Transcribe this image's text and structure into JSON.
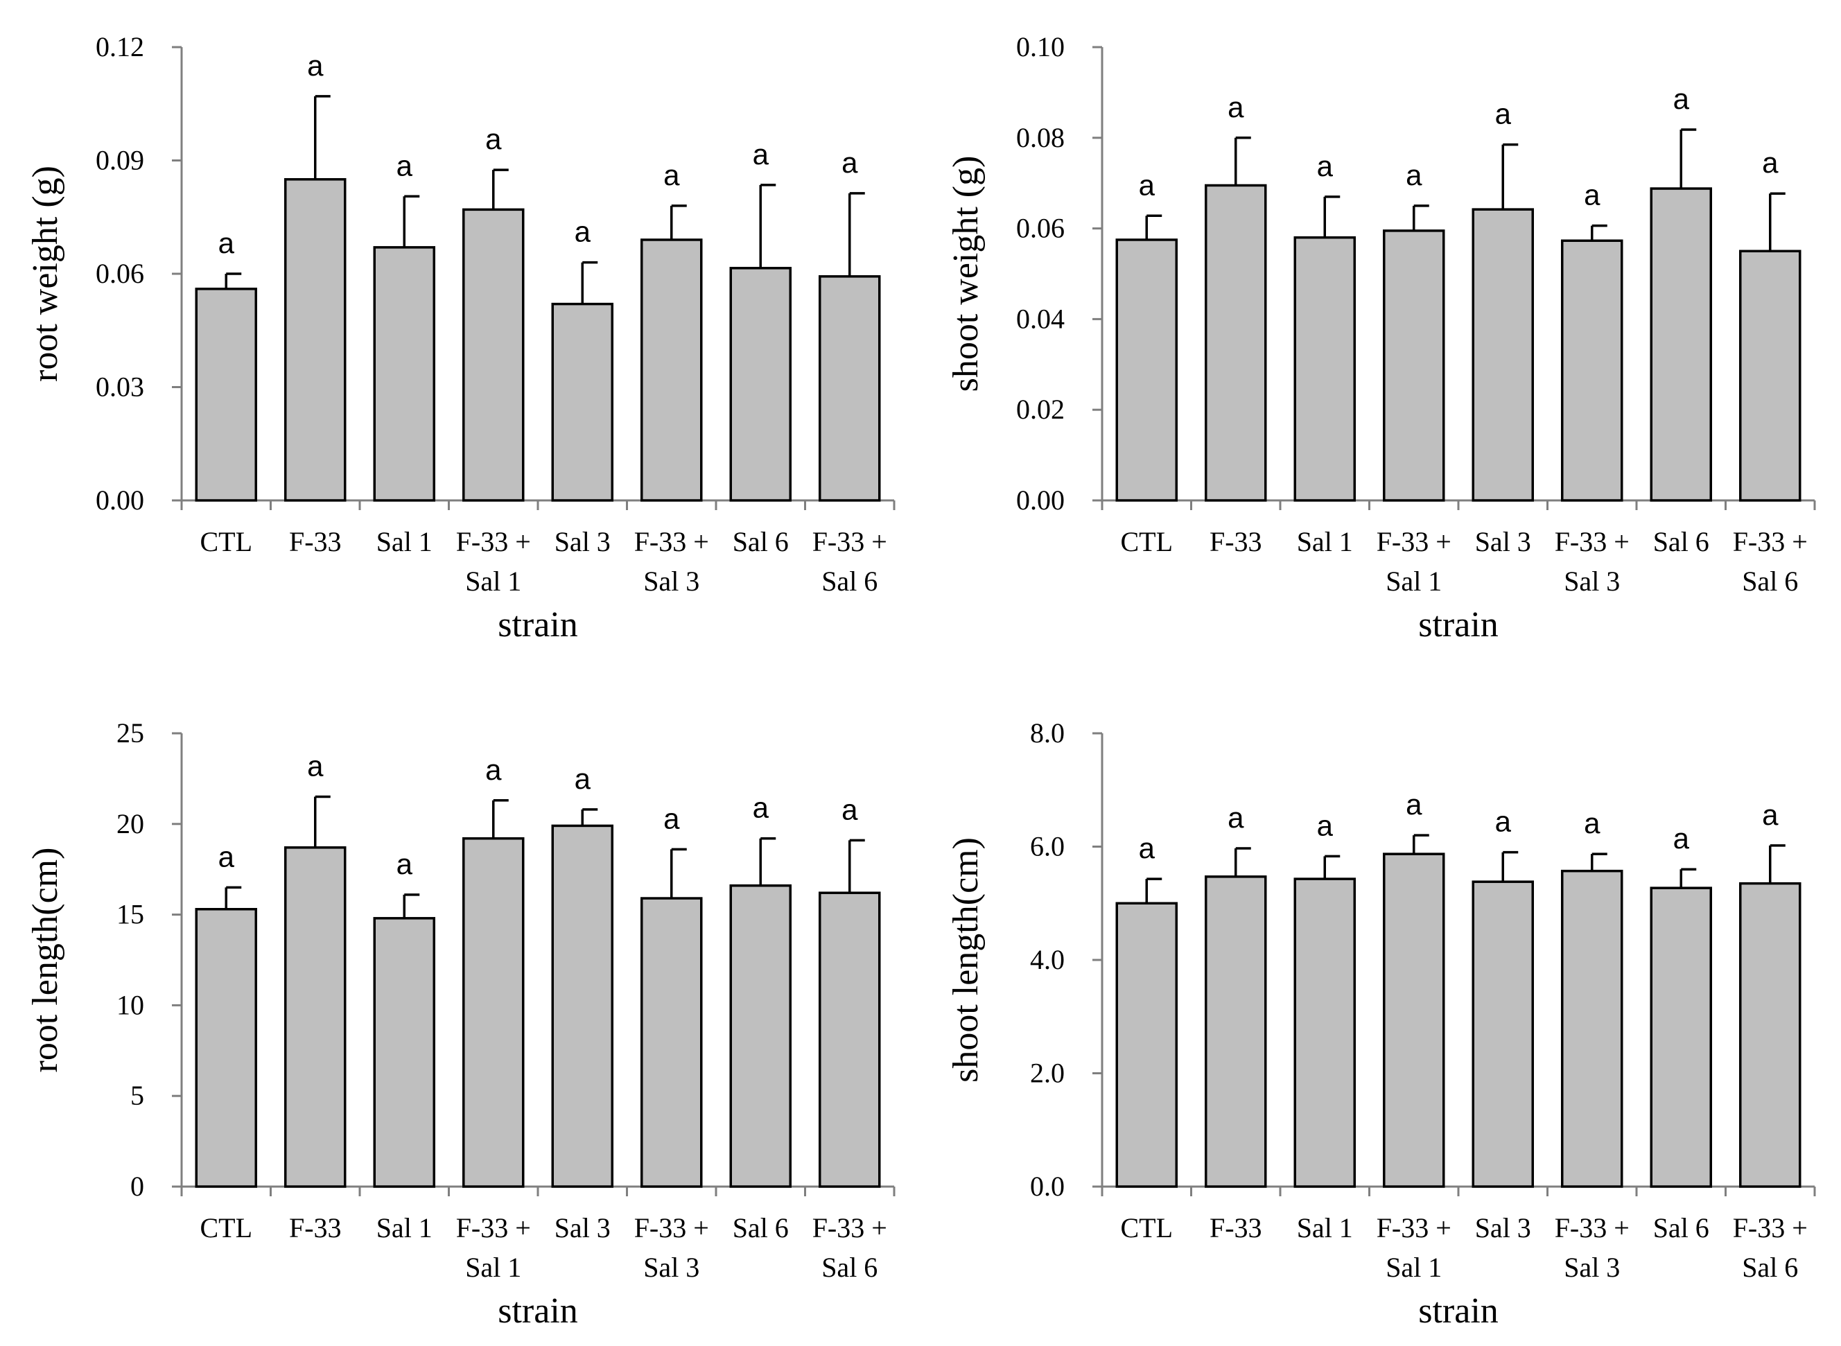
{
  "chart_data": [
    {
      "type": "bar",
      "categories": [
        [
          "CTL"
        ],
        [
          "F-33"
        ],
        [
          "Sal 1"
        ],
        [
          "F-33 +",
          "Sal 1"
        ],
        [
          "Sal 3"
        ],
        [
          "F-33 +",
          "Sal 3"
        ],
        [
          "Sal 6"
        ],
        [
          "F-33 +",
          "Sal 6"
        ]
      ],
      "values": [
        0.056,
        0.085,
        0.067,
        0.077,
        0.052,
        0.069,
        0.0615,
        0.0593
      ],
      "errors": [
        0.004,
        0.022,
        0.0135,
        0.0105,
        0.011,
        0.009,
        0.022,
        0.022
      ],
      "significance": [
        "a",
        "a",
        "a",
        "a",
        "a",
        "a",
        "a",
        "a"
      ],
      "xlabel": "strain",
      "ylabel": "root weight (g)",
      "ylim": [
        0,
        0.12
      ],
      "yticks": [
        "0.00",
        "0.03",
        "0.06",
        "0.09",
        "0.12"
      ],
      "grid": false,
      "bar_color": "#bfbfbf"
    },
    {
      "type": "bar",
      "categories": [
        [
          "CTL"
        ],
        [
          "F-33"
        ],
        [
          "Sal 1"
        ],
        [
          "F-33 +",
          "Sal 1"
        ],
        [
          "Sal 3"
        ],
        [
          "F-33 +",
          "Sal 3"
        ],
        [
          "Sal 6"
        ],
        [
          "F-33 +",
          "Sal 6"
        ]
      ],
      "values": [
        0.0575,
        0.0695,
        0.058,
        0.0595,
        0.0642,
        0.0573,
        0.0688,
        0.055
      ],
      "errors": [
        0.0053,
        0.0105,
        0.009,
        0.0055,
        0.0143,
        0.0033,
        0.013,
        0.0127
      ],
      "significance": [
        "a",
        "a",
        "a",
        "a",
        "a",
        "a",
        "a",
        "a"
      ],
      "xlabel": "strain",
      "ylabel": "shoot weight (g)",
      "ylim": [
        0,
        0.1
      ],
      "yticks": [
        "0.00",
        "0.02",
        "0.04",
        "0.06",
        "0.08",
        "0.10"
      ],
      "grid": false,
      "bar_color": "#bfbfbf"
    },
    {
      "type": "bar",
      "categories": [
        [
          "CTL"
        ],
        [
          "F-33"
        ],
        [
          "Sal 1"
        ],
        [
          "F-33 +",
          "Sal 1"
        ],
        [
          "Sal 3"
        ],
        [
          "F-33 +",
          "Sal 3"
        ],
        [
          "Sal 6"
        ],
        [
          "F-33 +",
          "Sal 6"
        ]
      ],
      "values": [
        15.3,
        18.7,
        14.8,
        19.2,
        19.9,
        15.9,
        16.6,
        16.2
      ],
      "errors": [
        1.2,
        2.8,
        1.3,
        2.1,
        0.9,
        2.7,
        2.6,
        2.9
      ],
      "significance": [
        "a",
        "a",
        "a",
        "a",
        "a",
        "a",
        "a",
        "a"
      ],
      "xlabel": "strain",
      "ylabel": "root length(cm)",
      "ylim": [
        0,
        25
      ],
      "yticks": [
        "0",
        "5",
        "10",
        "15",
        "20",
        "25"
      ],
      "grid": false,
      "bar_color": "#bfbfbf"
    },
    {
      "type": "bar",
      "categories": [
        [
          "CTL"
        ],
        [
          "F-33"
        ],
        [
          "Sal 1"
        ],
        [
          "F-33 +",
          "Sal 1"
        ],
        [
          "Sal 3"
        ],
        [
          "F-33 +",
          "Sal 3"
        ],
        [
          "Sal 6"
        ],
        [
          "F-33 +",
          "Sal 6"
        ]
      ],
      "values": [
        5.0,
        5.47,
        5.43,
        5.87,
        5.38,
        5.57,
        5.27,
        5.35
      ],
      "errors": [
        0.43,
        0.5,
        0.4,
        0.33,
        0.52,
        0.3,
        0.33,
        0.67
      ],
      "significance": [
        "a",
        "a",
        "a",
        "a",
        "a",
        "a",
        "a",
        "a"
      ],
      "xlabel": "strain",
      "ylabel": "shoot length(cm)",
      "ylim": [
        0,
        8
      ],
      "yticks": [
        "0.0",
        "2.0",
        "4.0",
        "6.0",
        "8.0"
      ],
      "grid": false,
      "bar_color": "#bfbfbf"
    }
  ]
}
